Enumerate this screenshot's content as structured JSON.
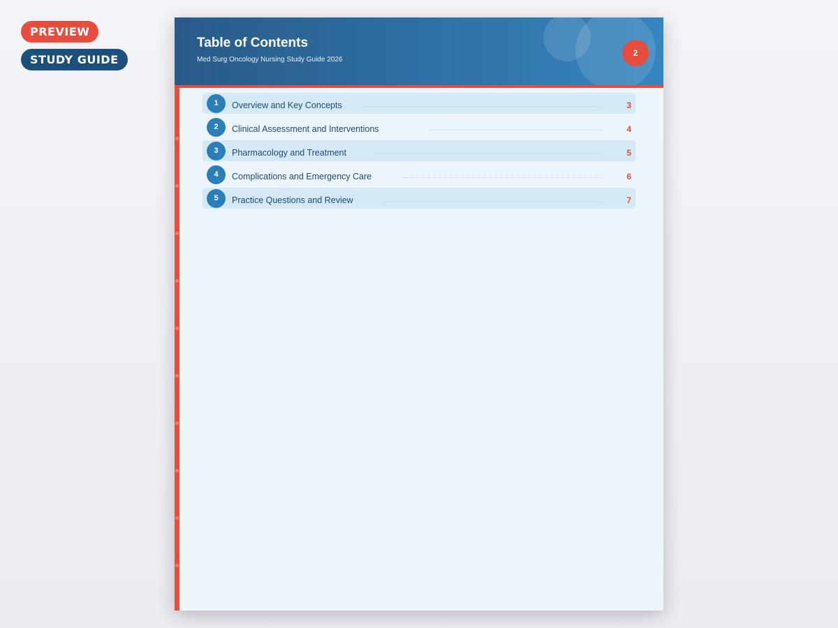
{
  "badges": {
    "preview": "PREVIEW",
    "type": "STUDY GUIDE"
  },
  "header": {
    "title": "Table of Contents",
    "subtitle": "Med Surg Oncology Nursing Study Guide 2026",
    "page_number": "2"
  },
  "colors": {
    "accent": "#e84c3d",
    "primary": "#2a7fb8",
    "header_dark": "#285a88"
  },
  "toc": [
    {
      "number": "1",
      "title": "Overview and Key Concepts",
      "page": "3"
    },
    {
      "number": "2",
      "title": "Clinical Assessment and Interventions",
      "page": "4"
    },
    {
      "number": "3",
      "title": "Pharmacology and Treatment",
      "page": "5"
    },
    {
      "number": "4",
      "title": "Complications and Emergency Care",
      "page": "6"
    },
    {
      "number": "5",
      "title": "Practice Questions and Review",
      "page": "7"
    }
  ]
}
